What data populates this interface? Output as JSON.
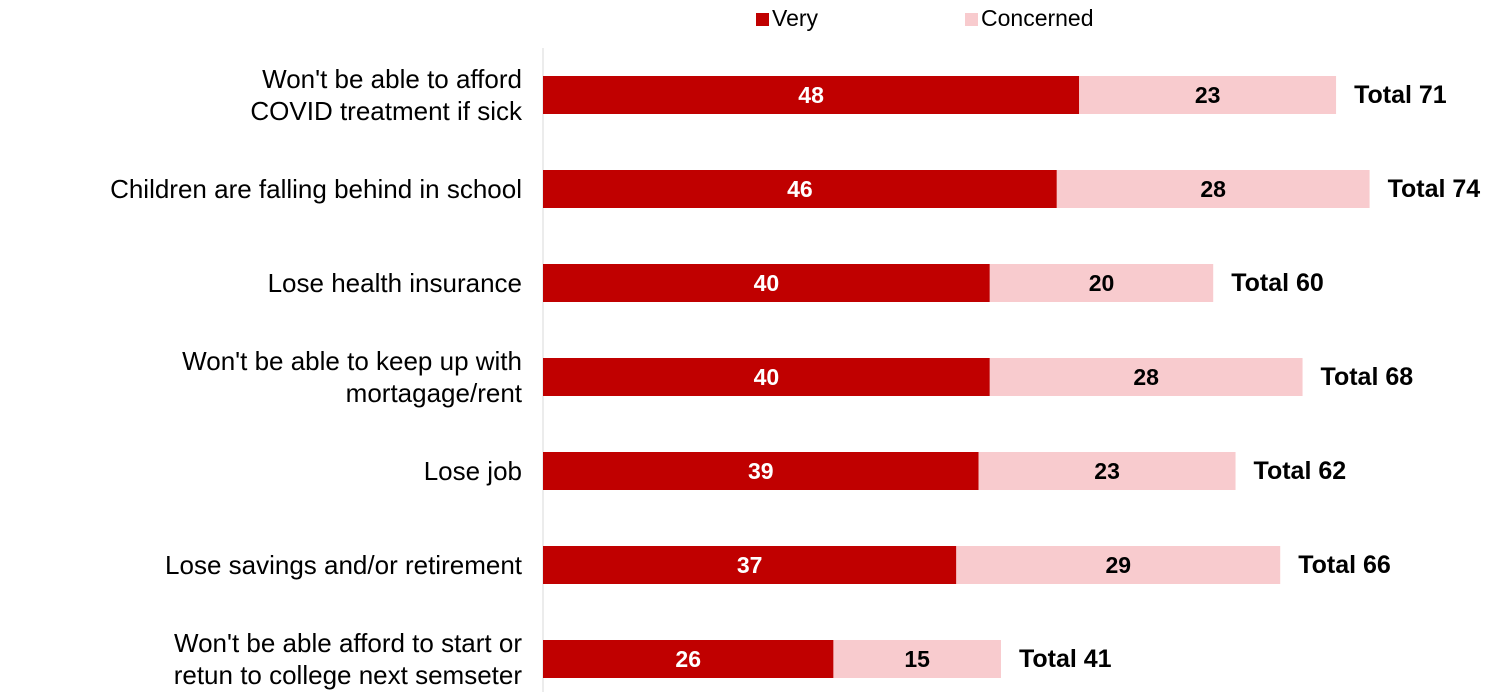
{
  "chart_data": {
    "type": "bar",
    "orientation": "horizontal",
    "stacked": true,
    "categories": [
      [
        "Won't be able to afford",
        "COVID treatment if sick"
      ],
      [
        "Children are falling behind in school"
      ],
      [
        "Lose health insurance"
      ],
      [
        "Won't be able to keep up with",
        "mortagage/rent"
      ],
      [
        "Lose job"
      ],
      [
        "Lose savings and/or retirement"
      ],
      [
        "Won't be able afford to start or",
        "retun to college next semseter"
      ]
    ],
    "series": [
      {
        "name": "Very",
        "color": "#C00000",
        "values": [
          48,
          46,
          40,
          40,
          39,
          37,
          26
        ]
      },
      {
        "name": "Concerned",
        "color": "#F8CBCE",
        "values": [
          23,
          28,
          20,
          28,
          23,
          29,
          15
        ]
      }
    ],
    "totals": [
      {
        "prefix": "Total",
        "value": 71
      },
      {
        "prefix": "Total",
        "value": 74
      },
      {
        "prefix": "Total",
        "value": 60
      },
      {
        "prefix": "Total",
        "value": 68
      },
      {
        "prefix": "Total",
        "value": 62
      },
      {
        "prefix": "Total",
        "value": 66
      },
      {
        "prefix": "Total",
        "value": 41
      }
    ],
    "xlim": [
      0,
      80
    ],
    "grid": false,
    "legend_position": "top",
    "data_labels": true,
    "colors": {
      "axis": "#D9D9D9",
      "category_text": "#000000",
      "inner_label_dark_bar": "#FFFFFF",
      "inner_label_light_bar": "#000000",
      "total_text": "#000000"
    }
  }
}
